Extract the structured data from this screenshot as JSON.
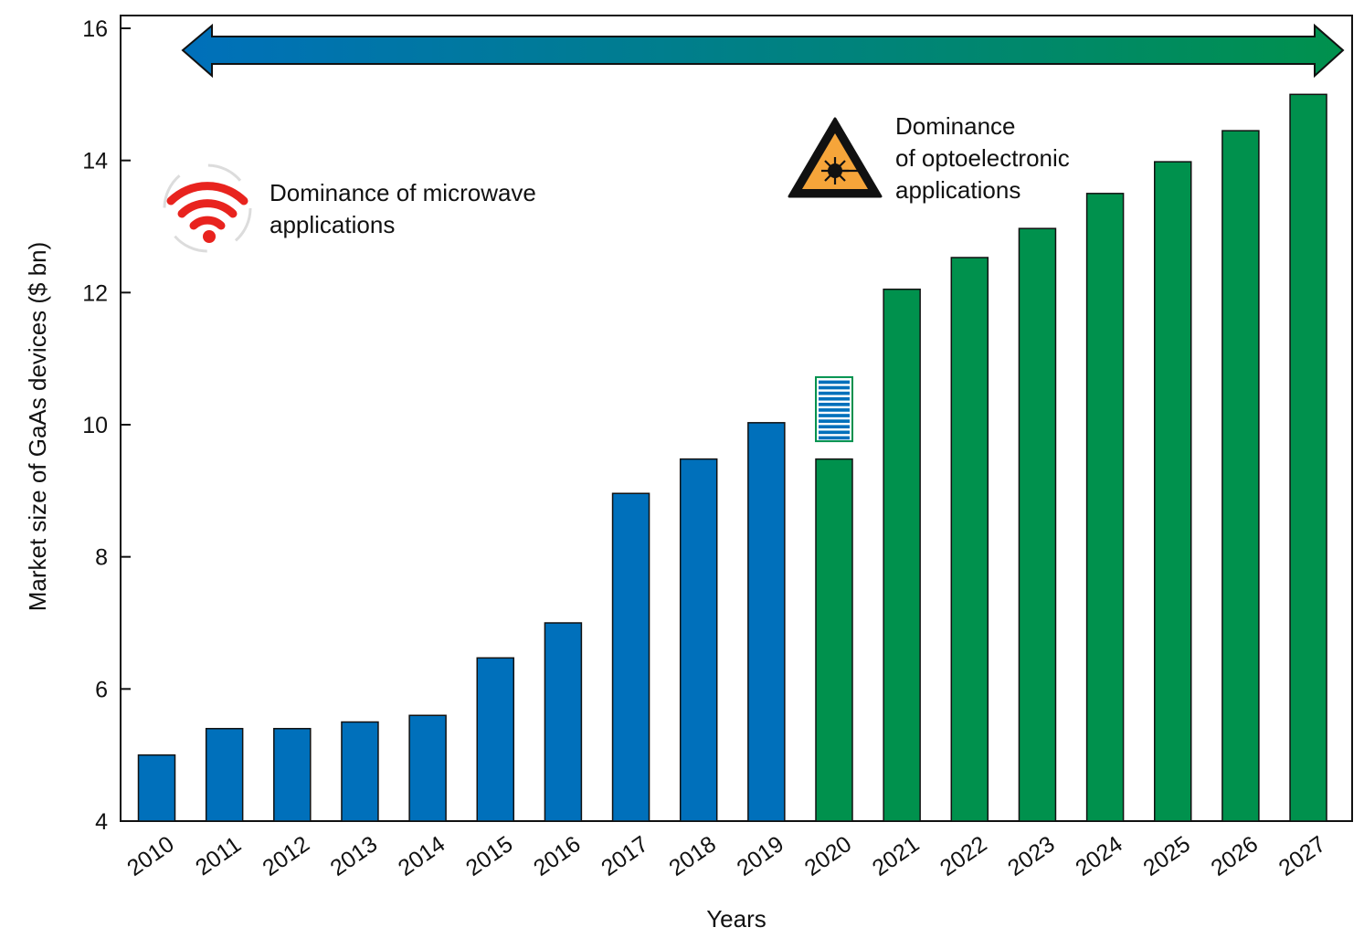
{
  "chart_data": {
    "type": "bar",
    "categories": [
      "2010",
      "2011",
      "2012",
      "2013",
      "2014",
      "2015",
      "2016",
      "2017",
      "2018",
      "2019",
      "2020",
      "2021",
      "2022",
      "2023",
      "2024",
      "2025",
      "2026",
      "2027"
    ],
    "values": [
      5.0,
      5.4,
      5.4,
      5.5,
      5.6,
      6.47,
      7.0,
      8.96,
      9.48,
      10.03,
      9.48,
      12.05,
      12.53,
      12.97,
      13.5,
      13.98,
      14.45,
      15.0
    ],
    "bar_colors": [
      "#0070bb",
      "#0070bb",
      "#0070bb",
      "#0070bb",
      "#0070bb",
      "#0070bb",
      "#0070bb",
      "#0070bb",
      "#0070bb",
      "#0070bb",
      "#00914d",
      "#00914d",
      "#00914d",
      "#00914d",
      "#00914d",
      "#00914d",
      "#00914d",
      "#00914d"
    ],
    "highlight_2020": {
      "category": "2020",
      "low": 9.75,
      "high": 10.72,
      "stripe_color": "#0070bb",
      "border_color": "#00914d"
    },
    "xlabel": "Years",
    "ylabel": "Market size of GaAs devices  ($ bn)",
    "ylim": [
      4,
      16
    ],
    "yticks": [
      4,
      6,
      8,
      10,
      12,
      14,
      16
    ],
    "grid": false,
    "colors": {
      "microwave": "#0070bb",
      "optoelectronic": "#00914d",
      "wifi": "#e8231e",
      "warning": "#f6a53a"
    },
    "annotations": {
      "microwave": {
        "lines": [
          "Dominance of microwave",
          "applications"
        ],
        "icon": "wifi-icon"
      },
      "optoelectronic": {
        "lines": [
          "Dominance",
          "of optoelectronic",
          "applications"
        ],
        "icon": "laser-warning-icon"
      }
    }
  }
}
